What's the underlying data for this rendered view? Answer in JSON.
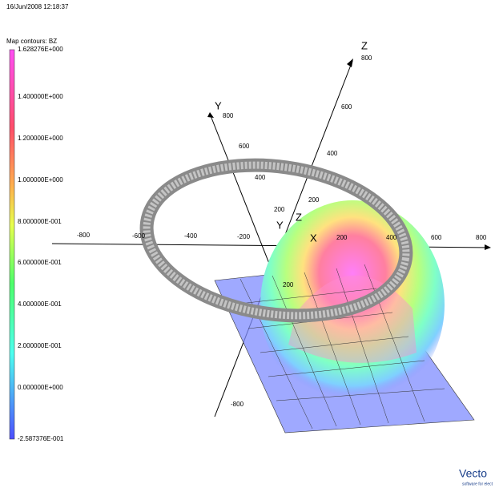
{
  "timestamp": "16/Jun/2008 12:18:37",
  "legend": {
    "title": "Map contours: BZ",
    "labels": [
      "1.628276E+000",
      "1.400000E+000",
      "1.200000E+000",
      "1.000000E+000",
      "8.000000E-001",
      "6.000000E-001",
      "4.000000E-001",
      "2.000000E-001",
      "0.000000E+000",
      "-2.587376E-001"
    ]
  },
  "axes": {
    "x": {
      "label": "X",
      "ticks": [
        "-800",
        "-600",
        "-400",
        "-200",
        "200",
        "400",
        "600",
        "800"
      ]
    },
    "y": {
      "label": "Y",
      "ticks": [
        "800",
        "600",
        "400",
        "200",
        "200",
        "-800"
      ]
    },
    "z": {
      "label": "Z",
      "ticks": [
        "800",
        "600",
        "400",
        "200"
      ]
    },
    "origin_y": "Y",
    "origin_z": "Z"
  },
  "logo": {
    "name": "Vecto",
    "tagline": "software for elect"
  }
}
